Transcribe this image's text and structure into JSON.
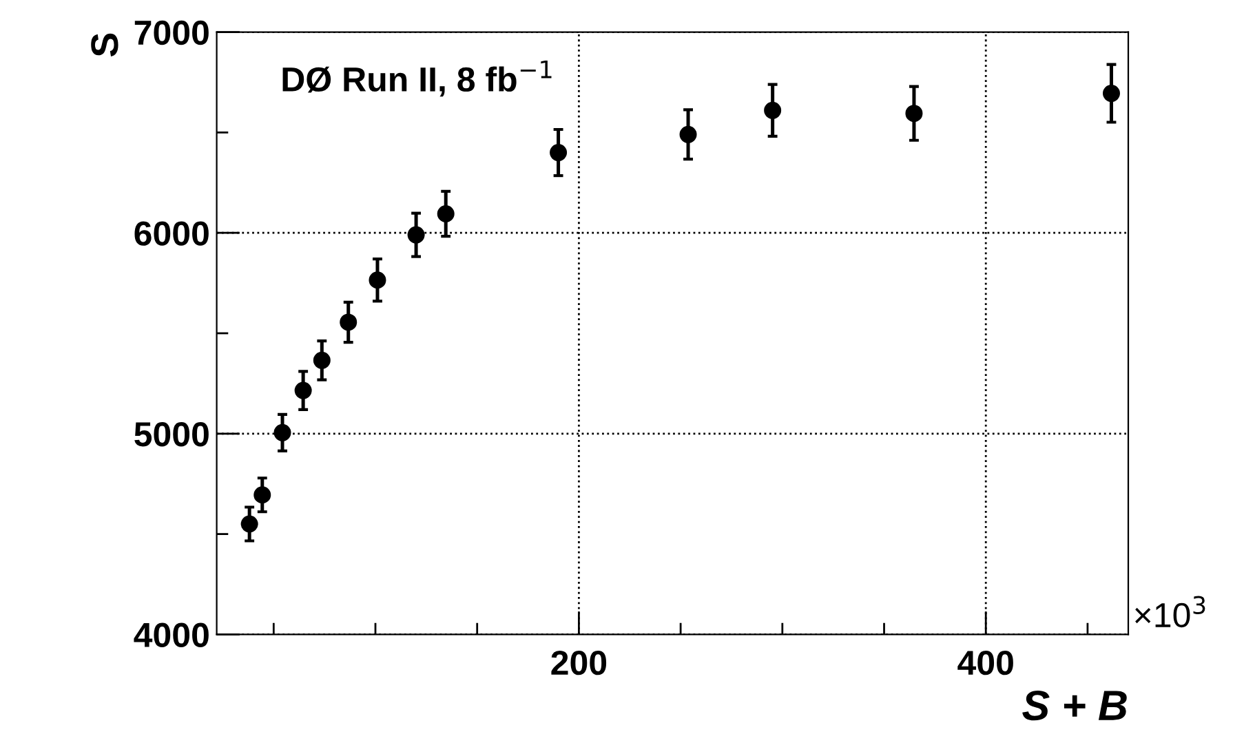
{
  "chart_data": {
    "type": "scatter",
    "xlabel": "S + B",
    "ylabel": "S",
    "annotations": [
      "DØ Run II, 8 fb$^{−1}$",
      "×10$^{3}$"
    ],
    "x": [
      38.1,
      44.4,
      54.3,
      64.5,
      73.7,
      86.7,
      101,
      120,
      134.6,
      189.9,
      253.7,
      295.2,
      364.7,
      461.7
    ],
    "values": [
      4550,
      4695,
      5005,
      5215,
      5365,
      5555,
      5765,
      5990,
      6095,
      6400,
      6490,
      6610,
      6595,
      6695
    ],
    "errors": [
      84,
      84,
      91,
      95,
      97,
      100,
      105,
      108,
      112,
      115,
      123,
      129,
      134,
      144
    ],
    "color": "#000000",
    "marker": "circle",
    "xlim": [
      22,
      470
    ],
    "ylim": [
      4000,
      7000
    ],
    "xticks": [
      {
        "value": 50,
        "label": null
      },
      {
        "value": 100,
        "label": null
      },
      {
        "value": 150,
        "label": null
      },
      200,
      {
        "value": 250,
        "label": null
      },
      {
        "value": 300,
        "label": null
      },
      {
        "value": 350,
        "label": null
      },
      400,
      {
        "value": 450,
        "label": null
      }
    ],
    "yticks": [
      4000,
      {
        "value": 4500,
        "label": null
      },
      5000,
      {
        "value": 5500,
        "label": null
      },
      6000,
      {
        "value": 6500,
        "label": null
      },
      7000
    ],
    "grid": true
  }
}
